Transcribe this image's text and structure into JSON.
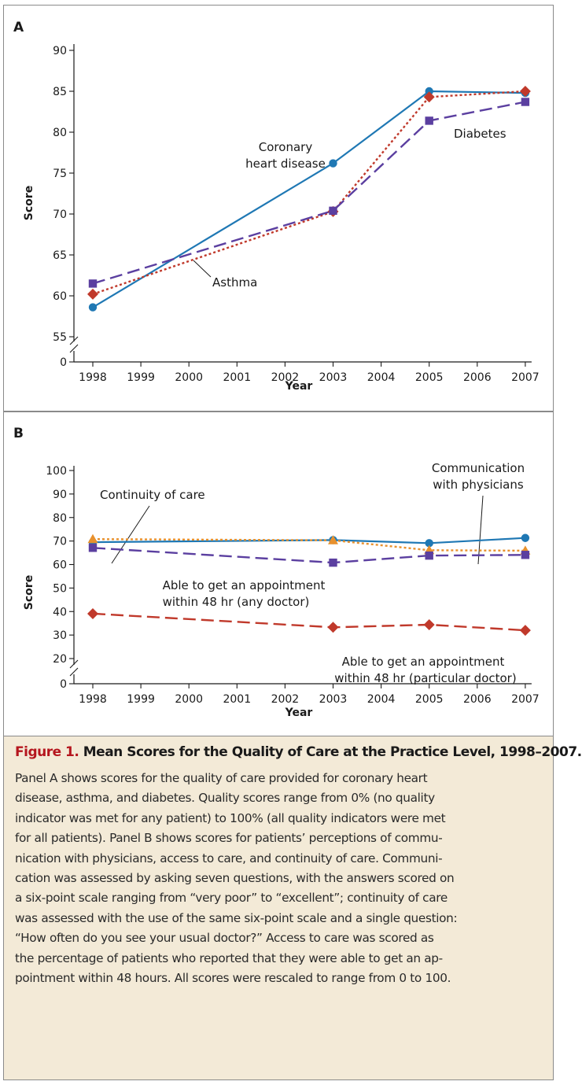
{
  "chart_data": [
    {
      "panel": "A",
      "type": "line",
      "xlabel": "Year",
      "ylabel": "Score",
      "x_ticks": [
        "1998",
        "1999",
        "2000",
        "2001",
        "2002",
        "2003",
        "2004",
        "2005",
        "2006",
        "2007"
      ],
      "y_ticks": [
        "0",
        "55",
        "60",
        "65",
        "70",
        "75",
        "80",
        "85",
        "90"
      ],
      "ylim": [
        55,
        90
      ],
      "axis_break": true,
      "series": [
        {
          "name": "Coronary heart disease",
          "style": "solid",
          "marker": "circle",
          "color": "#1f78b4",
          "points": [
            {
              "x": 1998,
              "y": 58.6
            },
            {
              "x": 2003,
              "y": 76.2
            },
            {
              "x": 2005,
              "y": 85.0
            },
            {
              "x": 2007,
              "y": 84.8
            }
          ]
        },
        {
          "name": "Asthma",
          "style": "dotted",
          "marker": "diamond",
          "color": "#c0392b",
          "points": [
            {
              "x": 1998,
              "y": 60.2
            },
            {
              "x": 2003,
              "y": 70.3
            },
            {
              "x": 2005,
              "y": 84.3
            },
            {
              "x": 2007,
              "y": 85.0
            }
          ]
        },
        {
          "name": "Diabetes",
          "style": "dashed",
          "marker": "square",
          "color": "#5b3fa0",
          "points": [
            {
              "x": 1998,
              "y": 61.5
            },
            {
              "x": 2003,
              "y": 70.4
            },
            {
              "x": 2005,
              "y": 81.4
            },
            {
              "x": 2007,
              "y": 83.7
            }
          ]
        }
      ]
    },
    {
      "panel": "B",
      "type": "line",
      "xlabel": "Year",
      "ylabel": "Score",
      "x_ticks": [
        "1998",
        "1999",
        "2000",
        "2001",
        "2002",
        "2003",
        "2004",
        "2005",
        "2006",
        "2007"
      ],
      "y_ticks": [
        "0",
        "20",
        "30",
        "40",
        "50",
        "60",
        "70",
        "80",
        "90",
        "100"
      ],
      "ylim": [
        20,
        100
      ],
      "axis_break": true,
      "series": [
        {
          "name": "Communication with physicians",
          "style": "solid",
          "marker": "circle",
          "color": "#1f78b4",
          "points": [
            {
              "x": 1998,
              "y": 69.5
            },
            {
              "x": 2003,
              "y": 70.4
            },
            {
              "x": 2005,
              "y": 69.1
            },
            {
              "x": 2007,
              "y": 71.3
            }
          ]
        },
        {
          "name": "Continuity of care",
          "style": "dotted",
          "marker": "triangle",
          "color": "#e8912d",
          "points": [
            {
              "x": 1998,
              "y": 70.8
            },
            {
              "x": 2003,
              "y": 70.3
            },
            {
              "x": 2005,
              "y": 66.1
            },
            {
              "x": 2007,
              "y": 65.9
            }
          ]
        },
        {
          "name": "Able to get an appointment within 48 hr (any doctor)",
          "style": "dashed",
          "marker": "square",
          "color": "#5b3fa0",
          "points": [
            {
              "x": 1998,
              "y": 67.1
            },
            {
              "x": 2003,
              "y": 60.8
            },
            {
              "x": 2005,
              "y": 63.8
            },
            {
              "x": 2007,
              "y": 64.1
            }
          ]
        },
        {
          "name": "Able to get an appointment within 48 hr (particular doctor)",
          "style": "dashed",
          "marker": "diamond",
          "color": "#c0392b",
          "points": [
            {
              "x": 1998,
              "y": 39.1
            },
            {
              "x": 2003,
              "y": 33.3
            },
            {
              "x": 2005,
              "y": 34.4
            },
            {
              "x": 2007,
              "y": 32.0
            }
          ]
        }
      ]
    }
  ],
  "panel_a": {
    "label": "A",
    "annotations": {
      "chd_1": "Coronary",
      "chd_2": "heart disease",
      "asthma": "Asthma",
      "diabetes": "Diabetes"
    }
  },
  "panel_b": {
    "label": "B",
    "annotations": {
      "continuity": "Continuity of care",
      "comm_1": "Communication",
      "comm_2": "with physicians",
      "any_1": "Able to get an appointment",
      "any_2": "within 48 hr (any doctor)",
      "part_1": "Able to get an appointment",
      "part_2": "within 48 hr (particular doctor)"
    }
  },
  "caption": {
    "figure_label": "Figure 1.",
    "title": "Mean Scores for the Quality of Care at the Practice Level, 1998–2007.",
    "lines": [
      "Panel A shows scores for the quality of care provided for coronary heart",
      "disease, asthma, and diabetes. Quality scores range from 0% (no quality",
      "indicator was met for any patient) to 100% (all quality indicators were met",
      "for all patients). Panel B shows scores for patients’ perceptions of commu-",
      "nication with physicians, access to care, and continuity of care. Communi-",
      "cation was assessed by asking seven questions, with the answers scored on",
      "a six-point scale ranging from “very poor” to “excellent”; continuity of care",
      "was assessed with the use of the same six-point scale and a single question:",
      "“How often do you see your usual doctor?” Access to care was scored as",
      "the percentage of patients who reported that they were able to get an ap-",
      "pointment within 48 hours. All scores were rescaled to range from 0 to 100."
    ]
  }
}
